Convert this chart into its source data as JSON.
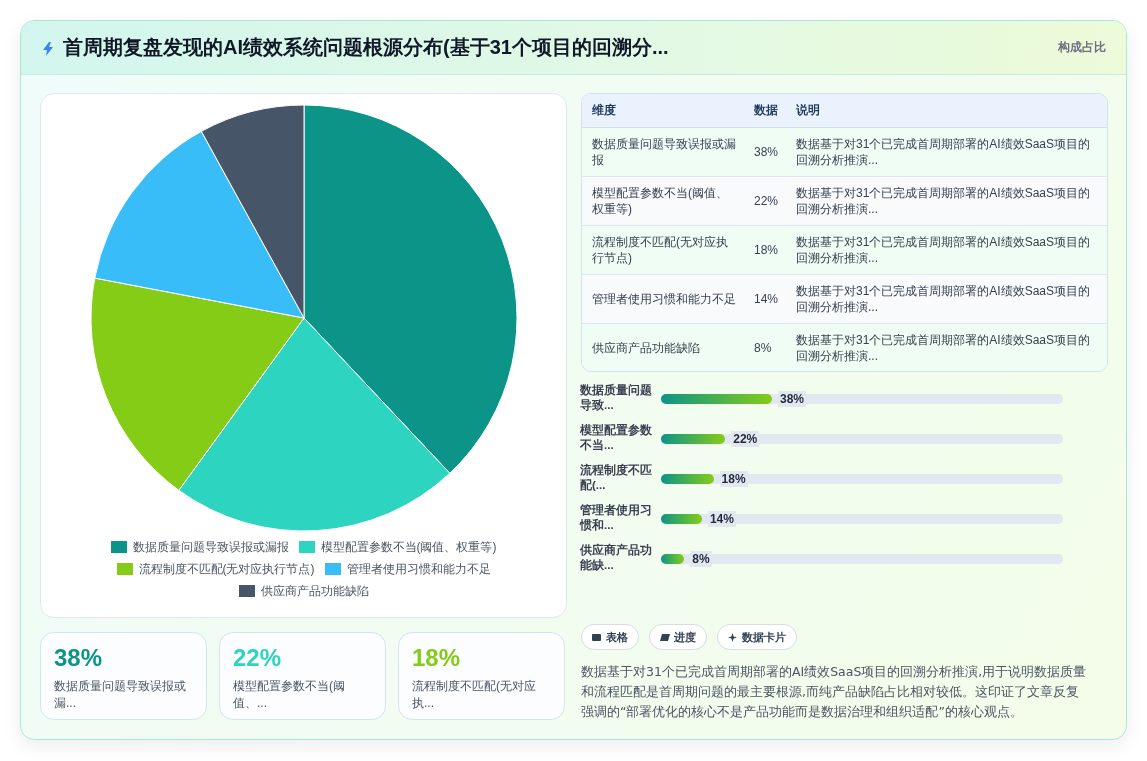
{
  "chart_data": [
    {
      "type": "other",
      "title": "首周期复盘发现的AI绩效系统问题根源分布(基于31个项目的回溯分...",
      "subtitle": "构成占比"
    },
    {
      "type": "pie",
      "categories": [
        "数据质量问题导致误报或漏报",
        "模型配置参数不当(阈值、权重等)",
        "流程制度不匹配(无对应执行节点)",
        "管理者使用习惯和能力不足",
        "供应商产品功能缺陷"
      ],
      "values": [
        38,
        22,
        18,
        14,
        8
      ],
      "colors": [
        "#0d9488",
        "#2dd4bf",
        "#84cc16",
        "#38bdf8",
        "#475569"
      ],
      "legend": "bottom"
    },
    {
      "type": "other",
      "categories": [
        "数据质量问题导致误报或漏...",
        "模型配置参数不当(阈值、...",
        "流程制度不匹配(无对应执..."
      ],
      "values": [
        38,
        22,
        18
      ],
      "value_labels": [
        "38%",
        "22%",
        "18%"
      ]
    },
    {
      "type": "other",
      "categories": [
        "维度",
        "数据",
        "说明"
      ],
      "cell_labels": [
        [
          "数据质量问题导致误报或漏报",
          "38%",
          "数据基于对31个已完成首周期部署的AI绩效SaaS项目的回溯分析推演..."
        ],
        [
          "模型配置参数不当(阈值、权重等)",
          "22%",
          "数据基于对31个已完成首周期部署的AI绩效SaaS项目的回溯分析推演..."
        ],
        [
          "流程制度不匹配(无对应执行节点)",
          "18%",
          "数据基于对31个已完成首周期部署的AI绩效SaaS项目的回溯分析推演..."
        ],
        [
          "管理者使用习惯和能力不足",
          "14%",
          "数据基于对31个已完成首周期部署的AI绩效SaaS项目的回溯分析推演..."
        ],
        [
          "供应商产品功能缺陷",
          "8%",
          "数据基于对31个已完成首周期部署的AI绩效SaaS项目的回溯分析推演..."
        ]
      ]
    },
    {
      "type": "bar",
      "orientation": "horizontal",
      "categories": [
        "数据质量问题导致...",
        "模型配置参数不当...",
        "流程制度不匹配(...",
        "管理者使用习惯和...",
        "供应商产品功能缺..."
      ],
      "values": [
        38,
        22,
        18,
        14,
        8
      ],
      "value_labels": [
        "38%",
        "22%",
        "18%",
        "14%",
        "8%"
      ],
      "color": "#0d9488"
    },
    {
      "type": "other",
      "annotations": [
        "表格",
        "进度",
        "数据卡片",
        "数据基于对31个已完成首周期部署的AI绩效SaaS项目的回溯分析推演,用于说明数据质量和流程匹配是首周期问题的最主要根源,而纯产品缺陷占比相对较低。这印证了文章反复强调的“部署优化的核心不是产品功能而是数据治理和组织适配”的核心观点。"
      ]
    }
  ]
}
